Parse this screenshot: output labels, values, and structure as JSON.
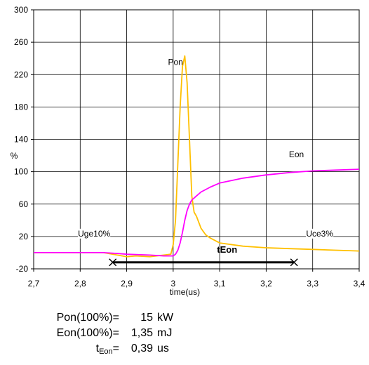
{
  "chart_data": {
    "type": "line",
    "xlabel": "time(us)",
    "ylabel": "%",
    "xlim": [
      2.7,
      3.4
    ],
    "ylim": [
      -20,
      300
    ],
    "x_ticks": [
      "2,7",
      "2,8",
      "2,9",
      "3",
      "3,1",
      "3,2",
      "3,3",
      "3,4"
    ],
    "y_ticks": [
      "-20",
      "20",
      "60",
      "100",
      "140",
      "180",
      "220",
      "260",
      "300"
    ],
    "grid": true,
    "series": [
      {
        "name": "Pon",
        "color": "#ffc000",
        "x": [
          2.7,
          2.8,
          2.85,
          2.88,
          2.9,
          2.92,
          2.95,
          2.98,
          2.995,
          3.0,
          3.005,
          3.01,
          3.015,
          3.02,
          3.025,
          3.03,
          3.035,
          3.04,
          3.045,
          3.05,
          3.06,
          3.07,
          3.08,
          3.1,
          3.15,
          3.2,
          3.25,
          3.3,
          3.35,
          3.4
        ],
        "y": [
          0,
          0,
          0,
          -3,
          -5,
          -4,
          -5,
          -3,
          -2,
          10,
          40,
          110,
          180,
          230,
          243,
          210,
          140,
          70,
          50,
          45,
          30,
          22,
          18,
          12,
          8,
          6,
          5,
          4,
          3,
          2
        ]
      },
      {
        "name": "Eon",
        "color": "#ff00ff",
        "x": [
          2.7,
          2.8,
          2.85,
          2.88,
          2.9,
          2.95,
          2.98,
          3.0,
          3.005,
          3.01,
          3.015,
          3.02,
          3.025,
          3.03,
          3.035,
          3.04,
          3.05,
          3.06,
          3.08,
          3.1,
          3.15,
          3.2,
          3.25,
          3.3,
          3.35,
          3.4
        ],
        "y": [
          0,
          0,
          0,
          -1,
          -2,
          -3,
          -4,
          -4,
          -2,
          3,
          12,
          25,
          40,
          52,
          60,
          65,
          70,
          75,
          81,
          86,
          92,
          96,
          99,
          101,
          102,
          103
        ]
      }
    ],
    "annotations": [
      {
        "text": "Pon",
        "x": 3.005,
        "y": 232
      },
      {
        "text": "Eon",
        "x": 3.265,
        "y": 118
      },
      {
        "text": "Uge10%",
        "x": 2.83,
        "y": 20
      },
      {
        "text": "Uce3%",
        "x": 3.315,
        "y": 20
      },
      {
        "text": "tEon",
        "x": 3.116,
        "y": 0,
        "bold": true
      }
    ],
    "interval": {
      "label": "tEon",
      "x_start": 2.87,
      "x_end": 3.26,
      "y": -12
    }
  },
  "footer": {
    "rows": [
      {
        "label": "Pon(100%)=",
        "value": "15",
        "unit": "kW"
      },
      {
        "label": "Eon(100%)=",
        "value": "1,35",
        "unit": "mJ"
      },
      {
        "label_main": "t",
        "label_sub": "Eon",
        "label_tail": "=",
        "value": "0,39",
        "unit": "us"
      }
    ]
  }
}
